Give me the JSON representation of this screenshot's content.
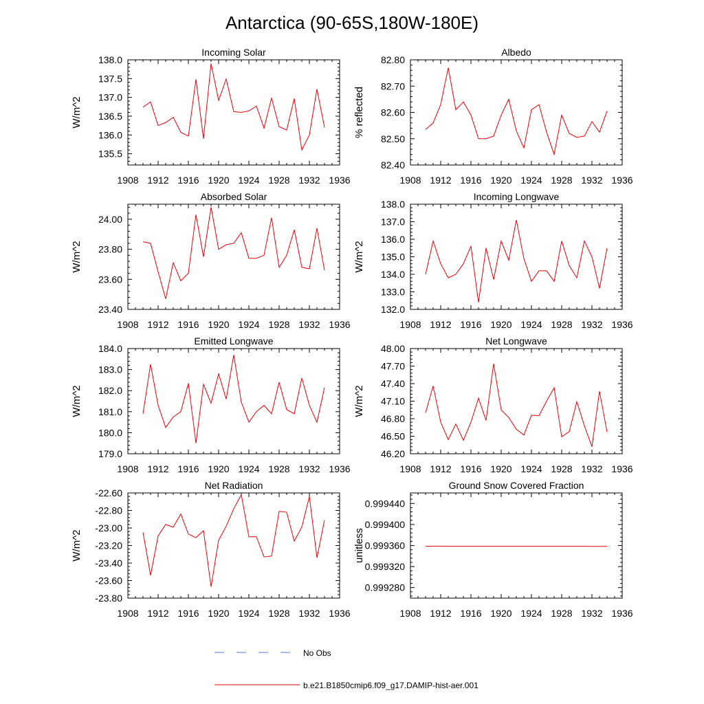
{
  "title": "Antarctica (90-65S,180W-180E)",
  "legend": {
    "placement": "bottom-center",
    "entries": [
      {
        "label": "No Obs",
        "color": "#5a6fd6",
        "dash": "dashed"
      },
      {
        "label": "b.e21.B1850cmip6.f09_g17.DAMIP-hist-aer.001",
        "color": "#e8000b",
        "dash": "solid"
      }
    ]
  },
  "chart_data": [
    {
      "type": "line",
      "title": "Incoming Solar",
      "ylabel": "W/m^2",
      "xlim": [
        1908,
        1936
      ],
      "xticks": [
        1908,
        1912,
        1916,
        1920,
        1924,
        1928,
        1932,
        1936
      ],
      "ylim": [
        135.2,
        138.0
      ],
      "yticks": [
        "135.5",
        "136.0",
        "136.5",
        "137.0",
        "137.5",
        "138.0"
      ],
      "series": [
        {
          "color": "#e8000b",
          "x": [
            1910,
            1911,
            1912,
            1913,
            1914,
            1915,
            1916,
            1917,
            1918,
            1919,
            1920,
            1921,
            1922,
            1923,
            1924,
            1925,
            1926,
            1927,
            1928,
            1929,
            1930,
            1931,
            1932,
            1933,
            1934
          ],
          "values": [
            136.74,
            136.88,
            136.25,
            136.33,
            136.47,
            136.07,
            135.97,
            137.48,
            135.9,
            137.9,
            136.92,
            137.49,
            136.62,
            136.6,
            136.64,
            136.77,
            136.18,
            136.98,
            136.22,
            136.13,
            136.97,
            135.6,
            136.0,
            137.22,
            136.2
          ]
        }
      ]
    },
    {
      "type": "line",
      "title": "Albedo",
      "ylabel": "% reflected",
      "xlim": [
        1908,
        1936
      ],
      "xticks": [
        1908,
        1912,
        1916,
        1920,
        1924,
        1928,
        1932,
        1936
      ],
      "ylim": [
        82.4,
        82.8
      ],
      "yticks": [
        "82.40",
        "82.50",
        "82.60",
        "82.70",
        "82.80"
      ],
      "series": [
        {
          "color": "#e8000b",
          "x": [
            1910,
            1911,
            1912,
            1913,
            1914,
            1915,
            1916,
            1917,
            1918,
            1919,
            1920,
            1921,
            1922,
            1923,
            1924,
            1925,
            1926,
            1927,
            1928,
            1929,
            1930,
            1931,
            1932,
            1933,
            1934
          ],
          "values": [
            82.535,
            82.56,
            82.63,
            82.77,
            82.61,
            82.64,
            82.59,
            82.5,
            82.5,
            82.51,
            82.59,
            82.65,
            82.53,
            82.465,
            82.61,
            82.63,
            82.525,
            82.44,
            82.59,
            82.52,
            82.505,
            82.51,
            82.565,
            82.525,
            82.605
          ]
        }
      ]
    },
    {
      "type": "line",
      "title": "Absorbed Solar",
      "ylabel": "W/m^2",
      "xlim": [
        1908,
        1936
      ],
      "xticks": [
        1908,
        1912,
        1916,
        1920,
        1924,
        1928,
        1932,
        1936
      ],
      "ylim": [
        23.4,
        24.1
      ],
      "yticks": [
        "23.40",
        "23.60",
        "23.80",
        "24.00"
      ],
      "series": [
        {
          "color": "#e8000b",
          "x": [
            1910,
            1911,
            1912,
            1913,
            1914,
            1915,
            1916,
            1917,
            1918,
            1919,
            1920,
            1921,
            1922,
            1923,
            1924,
            1925,
            1926,
            1927,
            1928,
            1929,
            1930,
            1931,
            1932,
            1933,
            1934
          ],
          "values": [
            23.85,
            23.84,
            23.65,
            23.47,
            23.71,
            23.59,
            23.64,
            24.03,
            23.75,
            24.08,
            23.8,
            23.83,
            23.84,
            23.91,
            23.74,
            23.74,
            23.76,
            24.01,
            23.68,
            23.76,
            23.93,
            23.68,
            23.67,
            23.94,
            23.66
          ]
        }
      ]
    },
    {
      "type": "line",
      "title": "Incoming Longwave",
      "ylabel": "W/m^2",
      "xlim": [
        1908,
        1936
      ],
      "xticks": [
        1908,
        1912,
        1916,
        1920,
        1924,
        1928,
        1932,
        1936
      ],
      "ylim": [
        132.0,
        138.0
      ],
      "yticks": [
        "132.0",
        "133.0",
        "134.0",
        "135.0",
        "136.0",
        "137.0",
        "138.0"
      ],
      "series": [
        {
          "color": "#e8000b",
          "x": [
            1910,
            1911,
            1912,
            1913,
            1914,
            1915,
            1916,
            1917,
            1918,
            1919,
            1920,
            1921,
            1922,
            1923,
            1924,
            1925,
            1926,
            1927,
            1928,
            1929,
            1930,
            1931,
            1932,
            1933,
            1934
          ],
          "values": [
            134.0,
            135.9,
            134.6,
            133.8,
            134.0,
            134.6,
            135.6,
            132.4,
            135.5,
            133.7,
            135.9,
            134.8,
            137.1,
            134.9,
            133.6,
            134.2,
            134.2,
            133.6,
            135.9,
            134.5,
            133.8,
            135.9,
            135.0,
            133.2,
            135.5
          ]
        }
      ]
    },
    {
      "type": "line",
      "title": "Emitted Longwave",
      "ylabel": "W/m^2",
      "xlim": [
        1908,
        1936
      ],
      "xticks": [
        1908,
        1912,
        1916,
        1920,
        1924,
        1928,
        1932,
        1936
      ],
      "ylim": [
        179.0,
        184.0
      ],
      "yticks": [
        "179.0",
        "180.0",
        "181.0",
        "182.0",
        "183.0",
        "184.0"
      ],
      "series": [
        {
          "color": "#e8000b",
          "x": [
            1910,
            1911,
            1912,
            1913,
            1914,
            1915,
            1916,
            1917,
            1918,
            1919,
            1920,
            1921,
            1922,
            1923,
            1924,
            1925,
            1926,
            1927,
            1928,
            1929,
            1930,
            1931,
            1932,
            1933,
            1934
          ],
          "values": [
            180.9,
            183.25,
            181.3,
            180.25,
            180.75,
            181.0,
            182.35,
            179.5,
            182.3,
            181.4,
            182.8,
            181.6,
            183.7,
            181.45,
            180.5,
            181.0,
            181.3,
            180.9,
            182.4,
            181.1,
            180.9,
            182.6,
            181.3,
            180.5,
            182.15
          ]
        }
      ]
    },
    {
      "type": "line",
      "title": "Net Longwave",
      "ylabel": "W/m^2",
      "xlim": [
        1908,
        1936
      ],
      "xticks": [
        1908,
        1912,
        1916,
        1920,
        1924,
        1928,
        1932,
        1936
      ],
      "ylim": [
        46.2,
        48.0
      ],
      "yticks": [
        "46.20",
        "46.50",
        "46.80",
        "47.10",
        "47.40",
        "47.70",
        "48.00"
      ],
      "series": [
        {
          "color": "#e8000b",
          "x": [
            1910,
            1911,
            1912,
            1913,
            1914,
            1915,
            1916,
            1917,
            1918,
            1919,
            1920,
            1921,
            1922,
            1923,
            1924,
            1925,
            1926,
            1927,
            1928,
            1929,
            1930,
            1931,
            1932,
            1933,
            1934
          ],
          "values": [
            46.9,
            47.36,
            46.74,
            46.44,
            46.71,
            46.43,
            46.74,
            47.15,
            46.77,
            47.74,
            46.95,
            46.82,
            46.62,
            46.52,
            46.86,
            46.85,
            47.1,
            47.33,
            46.49,
            46.58,
            47.09,
            46.68,
            46.32,
            47.27,
            46.57
          ]
        }
      ]
    },
    {
      "type": "line",
      "title": "Net Radiation",
      "ylabel": "W/m^2",
      "xlim": [
        1908,
        1936
      ],
      "xticks": [
        1908,
        1912,
        1916,
        1920,
        1924,
        1928,
        1932,
        1936
      ],
      "ylim": [
        -23.8,
        -22.6
      ],
      "yticks": [
        "-23.80",
        "-23.60",
        "-23.40",
        "-23.20",
        "-23.00",
        "-22.80",
        "-22.60"
      ],
      "series": [
        {
          "color": "#e8000b",
          "x": [
            1910,
            1911,
            1912,
            1913,
            1914,
            1915,
            1916,
            1917,
            1918,
            1919,
            1920,
            1921,
            1922,
            1923,
            1924,
            1925,
            1926,
            1927,
            1928,
            1929,
            1930,
            1931,
            1932,
            1933,
            1934
          ],
          "values": [
            -23.05,
            -23.54,
            -23.09,
            -22.96,
            -22.99,
            -22.84,
            -23.07,
            -23.11,
            -23.03,
            -23.67,
            -23.14,
            -22.98,
            -22.78,
            -22.62,
            -23.1,
            -23.1,
            -23.33,
            -23.32,
            -22.81,
            -22.82,
            -23.15,
            -22.99,
            -22.64,
            -23.34,
            -22.91
          ]
        }
      ]
    },
    {
      "type": "line",
      "title": "Ground Snow Covered Fraction",
      "ylabel": "unitless",
      "xlim": [
        1908,
        1936
      ],
      "xticks": [
        1908,
        1912,
        1916,
        1920,
        1924,
        1928,
        1932,
        1936
      ],
      "ylim": [
        0.99926,
        0.99946
      ],
      "yticks": [
        "0.999280",
        "0.999320",
        "0.999360",
        "0.999400",
        "0.999440"
      ],
      "series": [
        {
          "color": "#e8000b",
          "x": [
            1910,
            1911,
            1912,
            1913,
            1914,
            1915,
            1916,
            1917,
            1918,
            1919,
            1920,
            1921,
            1922,
            1923,
            1924,
            1925,
            1926,
            1927,
            1928,
            1929,
            1930,
            1931,
            1932,
            1933,
            1934
          ],
          "values": [
            0.9993585,
            0.9993588,
            0.9993588,
            0.9993586,
            0.9993585,
            0.9993585,
            0.9993586,
            0.9993585,
            0.9993585,
            0.9993585,
            0.9993586,
            0.9993585,
            0.9993585,
            0.9993585,
            0.9993586,
            0.9993585,
            0.9993585,
            0.9993586,
            0.9993585,
            0.9993585,
            0.9993585,
            0.9993585,
            0.9993584,
            0.9993584,
            0.9993584
          ]
        }
      ]
    }
  ]
}
